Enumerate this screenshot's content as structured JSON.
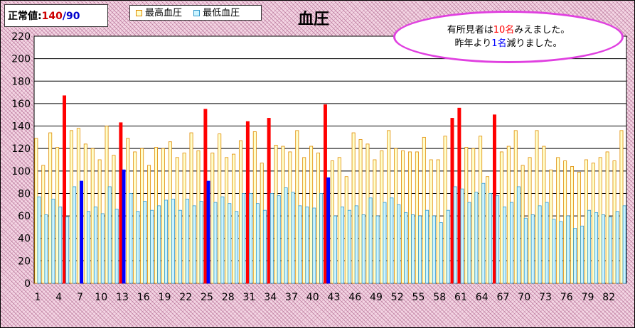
{
  "normal": {
    "label": "正常値:",
    "high": "140",
    "sep": "/",
    "low": "90"
  },
  "legend": {
    "high_label": "最高血圧",
    "low_label": "最低血圧"
  },
  "note": {
    "line1_a": "有所見者は",
    "line1_num": "10名",
    "line1_b": "みえました。",
    "line2_a": "昨年より",
    "line2_num": "1名",
    "line2_b": "減りました。"
  },
  "colors": {
    "high": "#ffffcc",
    "high_border": "#e08a00",
    "low": "#ccf4ff",
    "low_border": "#3399cc",
    "high_alert": "#ff0000",
    "low_alert": "#0000ff",
    "normal_red": "#cc0000",
    "normal_blue": "#0000cc"
  },
  "chart_data": {
    "type": "bar",
    "title": "血圧",
    "ylim": [
      0,
      220
    ],
    "yticks": [
      0,
      20,
      40,
      60,
      80,
      100,
      120,
      140,
      160,
      180,
      200,
      220
    ],
    "xtick_labels": [
      "1",
      "4",
      "7",
      "10",
      "13",
      "16",
      "19",
      "22",
      "25",
      "28",
      "31",
      "34",
      "37",
      "40",
      "43",
      "46",
      "49",
      "52",
      "55",
      "58",
      "61",
      "64",
      "67",
      "70",
      "73",
      "76",
      "79",
      "82"
    ],
    "xtick_every": 3,
    "series": [
      {
        "name": "最高血圧",
        "values": [
          129,
          105,
          134,
          121,
          167,
          136,
          138,
          124,
          120,
          110,
          140,
          114,
          143,
          129,
          117,
          120,
          105,
          121,
          120,
          126,
          112,
          116,
          134,
          118,
          155,
          116,
          133,
          112,
          115,
          127,
          144,
          135,
          107,
          147,
          123,
          122,
          117,
          136,
          112,
          122,
          116,
          159,
          109,
          112,
          95,
          134,
          128,
          124,
          110,
          118,
          136,
          120,
          118,
          117,
          117,
          130,
          110,
          110,
          131,
          147,
          156,
          121,
          120,
          131,
          95,
          150,
          117,
          122,
          136,
          105,
          112,
          136,
          122,
          101,
          112,
          109,
          104,
          99,
          110,
          107,
          112,
          117,
          109,
          136
        ]
      },
      {
        "name": "最低血圧",
        "values": [
          77,
          61,
          75,
          68,
          59,
          86,
          91,
          64,
          68,
          62,
          86,
          66,
          101,
          80,
          64,
          73,
          65,
          69,
          74,
          75,
          65,
          75,
          69,
          73,
          91,
          72,
          77,
          71,
          64,
          80,
          80,
          71,
          65,
          80,
          78,
          85,
          81,
          69,
          68,
          67,
          80,
          94,
          60,
          68,
          65,
          69,
          61,
          76,
          60,
          72,
          76,
          70,
          63,
          61,
          60,
          65,
          60,
          54,
          65,
          86,
          84,
          72,
          81,
          89,
          80,
          78,
          68,
          72,
          86,
          58,
          61,
          69,
          72,
          57,
          55,
          60,
          49,
          51,
          65,
          63,
          61,
          59,
          64,
          69
        ]
      }
    ],
    "alert_high_index": [
      5,
      13,
      25,
      31,
      34,
      42,
      60,
      61,
      66
    ],
    "alert_low_index": [
      7,
      13,
      25,
      42
    ]
  }
}
